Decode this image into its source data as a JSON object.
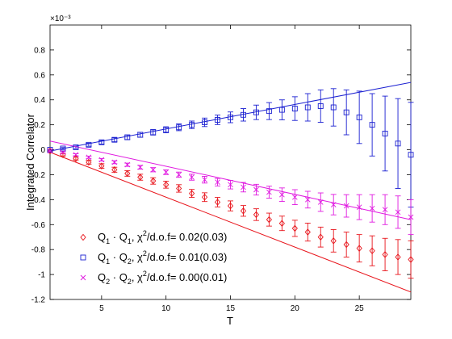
{
  "chart_data": {
    "type": "scatter",
    "title": "",
    "xlabel": "T",
    "ylabel": "Integrated Correlator",
    "scale_label": "×10⁻³",
    "xlim": [
      1,
      29
    ],
    "ylim": [
      -1.2,
      1.0
    ],
    "xticks": [
      5,
      10,
      15,
      20,
      25
    ],
    "xtick_labels": [
      "5",
      "10",
      "15",
      "20",
      "25"
    ],
    "yticks": [
      -1.2,
      -1.0,
      -0.8,
      -0.6,
      -0.4,
      -0.2,
      0,
      0.2,
      0.4,
      0.6,
      0.8
    ],
    "ytick_labels": [
      "-1.2",
      "-1",
      "-0.8",
      "-0.6",
      "-0.4",
      "-0.2",
      "0",
      "0.2",
      "0.4",
      "0.6",
      "0.8"
    ],
    "grid": false,
    "legend_position": "lower-left",
    "series": [
      {
        "name": "Q1·Q1, χ2/d.o.f= 0.02(0.03)",
        "legend_main": "Q",
        "legend_sub1": "1",
        "legend_mid": " · Q",
        "legend_sub2": "1",
        "legend_chi": ", χ",
        "legend_sup": "2",
        "legend_tail": "/d.o.f= 0.02(0.03)",
        "marker": "diamond",
        "color": "#e8141b",
        "x": [
          1,
          2,
          3,
          4,
          5,
          6,
          7,
          8,
          9,
          10,
          11,
          12,
          13,
          14,
          15,
          16,
          17,
          18,
          19,
          20,
          21,
          22,
          23,
          24,
          25,
          26,
          27,
          28,
          29
        ],
        "y": [
          -0.01,
          -0.04,
          -0.07,
          -0.1,
          -0.13,
          -0.16,
          -0.19,
          -0.22,
          -0.25,
          -0.28,
          -0.31,
          -0.35,
          -0.38,
          -0.42,
          -0.45,
          -0.49,
          -0.52,
          -0.56,
          -0.59,
          -0.63,
          -0.66,
          -0.7,
          -0.73,
          -0.76,
          -0.79,
          -0.81,
          -0.84,
          -0.86,
          -0.88
        ],
        "err": [
          0.005,
          0.01,
          0.012,
          0.015,
          0.018,
          0.02,
          0.022,
          0.024,
          0.026,
          0.028,
          0.03,
          0.032,
          0.035,
          0.038,
          0.04,
          0.043,
          0.047,
          0.052,
          0.058,
          0.065,
          0.072,
          0.08,
          0.09,
          0.1,
          0.11,
          0.12,
          0.13,
          0.14,
          0.15
        ],
        "fit": {
          "x": [
            1,
            29
          ],
          "y": [
            -0.02,
            -1.14
          ]
        }
      },
      {
        "name": "Q1·Q2, χ2/d.o.f= 0.01(0.03)",
        "legend_main": "Q",
        "legend_sub1": "1",
        "legend_mid": " · Q",
        "legend_sub2": "2",
        "legend_chi": ", χ",
        "legend_sup": "2",
        "legend_tail": "/d.o.f= 0.01(0.03)",
        "marker": "square",
        "color": "#1a1fd1",
        "x": [
          1,
          2,
          3,
          4,
          5,
          6,
          7,
          8,
          9,
          10,
          11,
          12,
          13,
          14,
          15,
          16,
          17,
          18,
          19,
          20,
          21,
          22,
          23,
          24,
          25,
          26,
          27,
          28,
          29
        ],
        "y": [
          0.0,
          0.01,
          0.02,
          0.04,
          0.06,
          0.08,
          0.1,
          0.12,
          0.14,
          0.16,
          0.18,
          0.2,
          0.22,
          0.24,
          0.26,
          0.28,
          0.3,
          0.31,
          0.32,
          0.33,
          0.34,
          0.35,
          0.34,
          0.3,
          0.26,
          0.2,
          0.13,
          0.05,
          -0.04
        ],
        "err": [
          0.005,
          0.008,
          0.01,
          0.012,
          0.014,
          0.016,
          0.018,
          0.02,
          0.022,
          0.024,
          0.027,
          0.03,
          0.034,
          0.038,
          0.043,
          0.05,
          0.058,
          0.068,
          0.08,
          0.095,
          0.11,
          0.13,
          0.15,
          0.18,
          0.21,
          0.25,
          0.3,
          0.36,
          0.42
        ],
        "fit": {
          "x": [
            1,
            29
          ],
          "y": [
            -0.01,
            0.54
          ]
        }
      },
      {
        "name": "Q2·Q2, χ2/d.o.f= 0.00(0.01)",
        "legend_main": "Q",
        "legend_sub1": "2",
        "legend_mid": " · Q",
        "legend_sub2": "2",
        "legend_chi": ", χ",
        "legend_sup": "2",
        "legend_tail": "/d.o.f= 0.00(0.01)",
        "marker": "cross",
        "color": "#e019e0",
        "x": [
          1,
          2,
          3,
          4,
          5,
          6,
          7,
          8,
          9,
          10,
          11,
          12,
          13,
          14,
          15,
          16,
          17,
          18,
          19,
          20,
          21,
          22,
          23,
          24,
          25,
          26,
          27,
          28,
          29
        ],
        "y": [
          -0.01,
          -0.02,
          -0.04,
          -0.06,
          -0.08,
          -0.1,
          -0.12,
          -0.14,
          -0.16,
          -0.18,
          -0.2,
          -0.22,
          -0.24,
          -0.26,
          -0.28,
          -0.3,
          -0.32,
          -0.34,
          -0.36,
          -0.38,
          -0.4,
          -0.42,
          -0.44,
          -0.45,
          -0.46,
          -0.47,
          -0.48,
          -0.5,
          -0.54
        ],
        "err": [
          0.003,
          0.006,
          0.008,
          0.009,
          0.01,
          0.012,
          0.013,
          0.015,
          0.017,
          0.019,
          0.021,
          0.024,
          0.027,
          0.03,
          0.034,
          0.038,
          0.043,
          0.048,
          0.054,
          0.06,
          0.067,
          0.074,
          0.082,
          0.09,
          0.1,
          0.11,
          0.12,
          0.13,
          0.14
        ],
        "fit": {
          "x": [
            1,
            29
          ],
          "y": [
            0.07,
            -0.56
          ]
        }
      }
    ]
  }
}
